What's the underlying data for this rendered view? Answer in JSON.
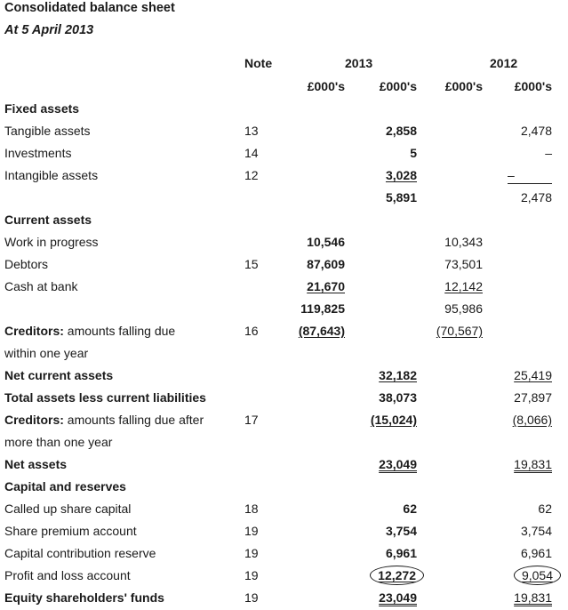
{
  "header": {
    "title": "Consolidated balance sheet",
    "subtitle": "At 5 April 2013",
    "note_label": "Note",
    "year_2013": "2013",
    "year_2012": "2012",
    "unit": "£000's"
  },
  "rows": [
    {
      "label": "Fixed assets",
      "bold": true
    },
    {
      "label": "Tangible assets",
      "note": "13",
      "v13b": "2,858",
      "v12b": "2,478"
    },
    {
      "label": "Investments",
      "note": "14",
      "v13b": "5",
      "v12b": "–"
    },
    {
      "label": "Intangible assets",
      "note": "12",
      "v13b": "3,028",
      "v12b": "–"
    },
    {
      "label": "",
      "v13b": "5,891",
      "v12b": "2,478"
    },
    {
      "label": "Current assets",
      "bold": true
    },
    {
      "label": "Work in progress",
      "v13a": "10,546",
      "v12a": "10,343"
    },
    {
      "label": "Debtors",
      "note": "15",
      "v13a": "87,609",
      "v12a": "73,501"
    },
    {
      "label": "Cash at bank",
      "v13a": "21,670",
      "v12a": "12,142"
    },
    {
      "label": "",
      "v13a": "119,825",
      "v12a": "95,986"
    },
    {
      "label_bold": "Creditors:",
      "label_rest": " amounts falling due",
      "note": "16",
      "v13a": "(87,643)",
      "v12a": "(70,567)"
    },
    {
      "label": "within one year"
    },
    {
      "label": "Net current assets",
      "bold": true,
      "v13b": "32,182",
      "v12b": "25,419"
    },
    {
      "label": "Total assets less current liabilities",
      "bold": true,
      "v13b": "38,073",
      "v12b": "27,897"
    },
    {
      "label_bold": "Creditors:",
      "label_rest": " amounts falling due after",
      "note": "17",
      "v13b": "(15,024)",
      "v12b": "(8,066)"
    },
    {
      "label": "more than one year"
    },
    {
      "label": "Net assets",
      "bold": true,
      "v13b": "23,049",
      "v12b": "19,831"
    },
    {
      "label": "Capital and reserves",
      "bold": true
    },
    {
      "label": "Called up share capital",
      "note": "18",
      "v13b": "62",
      "v12b": "62"
    },
    {
      "label": "Share premium account",
      "note": "19",
      "v13b": "3,754",
      "v12b": "3,754"
    },
    {
      "label": "Capital contribution reserve",
      "note": "19",
      "v13b": "6,961",
      "v12b": "6,961"
    },
    {
      "label": "Profit and loss account",
      "note": "19",
      "v13b": "12,272",
      "v12b": "9,054"
    },
    {
      "label": "Equity shareholders' funds",
      "bold": true,
      "note": "19",
      "v13b": "23,049",
      "v12b": "19,831"
    }
  ]
}
